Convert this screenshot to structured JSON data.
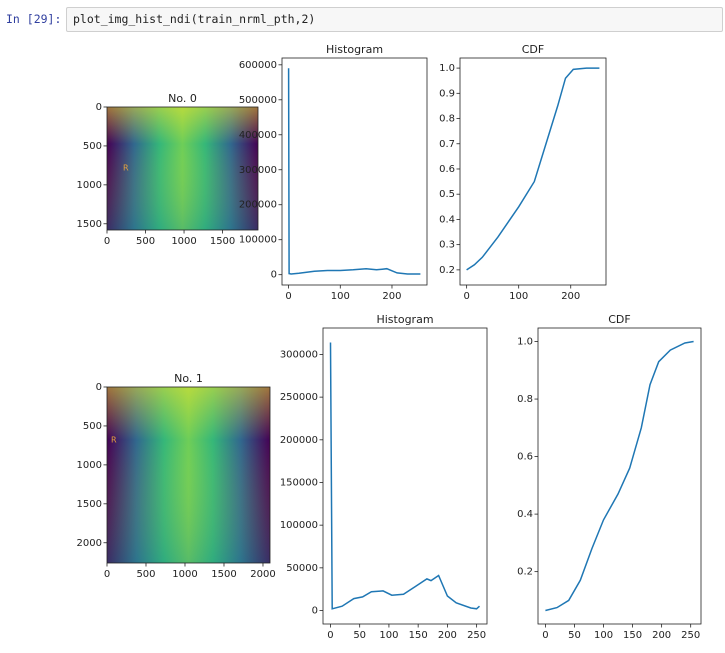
{
  "cell": {
    "prompt": "In [29]:",
    "code": "plot_img_hist_ndi(train_nrml_pth,2)"
  },
  "chart_data": [
    {
      "type": "image",
      "title": "No. 0",
      "xlim": [
        0,
        1960
      ],
      "ylim": [
        1580,
        0
      ],
      "xticks": [
        0,
        500,
        1000,
        1500
      ],
      "yticks": [
        0,
        500,
        1000,
        1500
      ],
      "annotation": {
        "text": "R",
        "x": 208,
        "y": 784
      }
    },
    {
      "type": "line",
      "title": "Histogram",
      "color": "#1f77b4",
      "xlim": [
        -12.75,
        267.75
      ],
      "ylim": [
        -29500,
        619500
      ],
      "xticks": [
        0,
        100,
        200
      ],
      "yticks": [
        0,
        100000,
        200000,
        300000,
        400000,
        500000,
        600000
      ],
      "x": [
        0,
        1,
        5,
        20,
        50,
        75,
        100,
        125,
        150,
        170,
        190,
        210,
        230,
        255
      ],
      "values": [
        590000,
        3000,
        2000,
        4000,
        10000,
        12000,
        12000,
        14000,
        17000,
        14000,
        17000,
        5000,
        2000,
        2000
      ]
    },
    {
      "type": "line",
      "title": "CDF",
      "color": "#1f77b4",
      "xlim": [
        -12.75,
        267.75
      ],
      "ylim": [
        0.14,
        1.04
      ],
      "xticks": [
        0,
        100,
        200
      ],
      "yticks": [
        0.2,
        0.3,
        0.4,
        0.5,
        0.6,
        0.7,
        0.8,
        0.9,
        {
          "value": 1,
          "label": "1.0"
        }
      ],
      "x": [
        0,
        15,
        30,
        45,
        60,
        80,
        100,
        130,
        160,
        175,
        190,
        205,
        230,
        255
      ],
      "values": [
        0.2,
        0.22,
        0.25,
        0.29,
        0.33,
        0.39,
        0.45,
        0.55,
        0.75,
        0.85,
        0.96,
        0.995,
        1.0,
        1.0
      ]
    },
    {
      "type": "image",
      "title": "No. 1",
      "xlim": [
        0,
        2090
      ],
      "ylim": [
        2260,
        0
      ],
      "xticks": [
        0,
        500,
        1000,
        1500,
        2000
      ],
      "yticks": [
        0,
        500,
        1000,
        1500,
        2000
      ],
      "annotation": {
        "text": "R",
        "x": 51,
        "y": 681
      }
    },
    {
      "type": "line",
      "title": "Histogram",
      "color": "#1f77b4",
      "xlim": [
        -12.75,
        267.75
      ],
      "ylim": [
        -15800,
        331000
      ],
      "xticks": [
        0,
        50,
        100,
        150,
        200,
        250
      ],
      "yticks": [
        0,
        50000,
        100000,
        150000,
        200000,
        250000,
        300000
      ],
      "x": [
        0,
        3,
        20,
        40,
        55,
        70,
        90,
        105,
        125,
        145,
        165,
        172,
        185,
        200,
        215,
        240,
        250,
        255
      ],
      "values": [
        314000,
        2000,
        5000,
        14000,
        16000,
        22000,
        23000,
        18000,
        19000,
        28000,
        37000,
        35000,
        41000,
        17000,
        9000,
        3000,
        2000,
        5000
      ]
    },
    {
      "type": "line",
      "title": "CDF",
      "color": "#1f77b4",
      "xlim": [
        -12.75,
        267.75
      ],
      "ylim": [
        0.018,
        1.047
      ],
      "xticks": [
        0,
        50,
        100,
        150,
        200,
        250
      ],
      "yticks": [
        0.2,
        0.4,
        0.6,
        0.8,
        {
          "value": 1,
          "label": "1.0"
        }
      ],
      "x": [
        0,
        20,
        40,
        60,
        80,
        100,
        125,
        145,
        165,
        180,
        195,
        215,
        240,
        255
      ],
      "values": [
        0.065,
        0.075,
        0.1,
        0.17,
        0.28,
        0.38,
        0.47,
        0.56,
        0.7,
        0.85,
        0.93,
        0.97,
        0.995,
        1.0
      ]
    }
  ]
}
